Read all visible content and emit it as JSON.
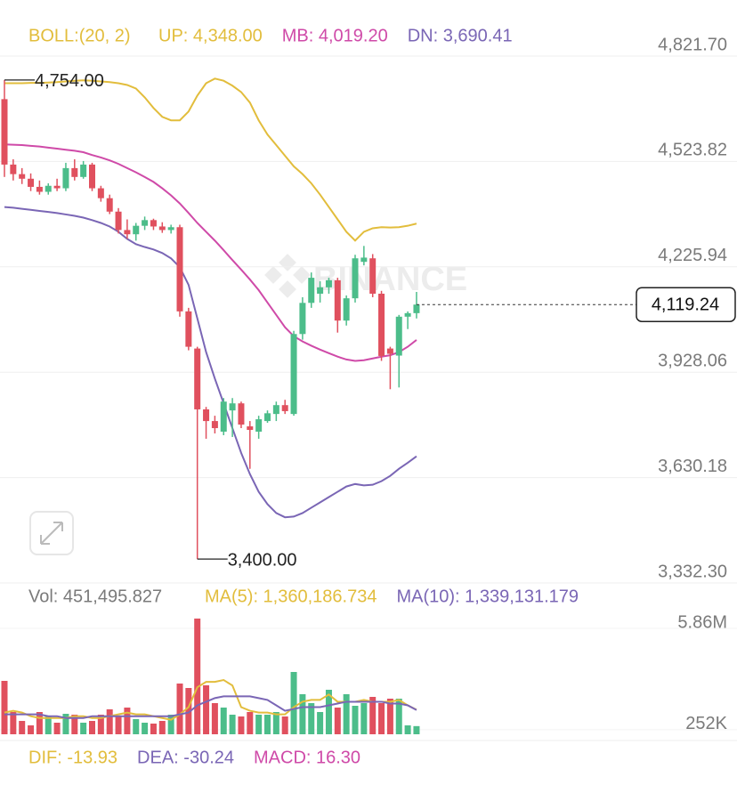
{
  "chart_data": {
    "type": "candlestick",
    "indicator": "BOLL:(20, 2)",
    "watermark": "BINANCE",
    "ylim": [
      3332.3,
      4821.7
    ],
    "yticks": [
      {
        "value": 4821.7,
        "label": "4,821.70"
      },
      {
        "value": 4523.82,
        "label": "4,523.82"
      },
      {
        "value": 4225.94,
        "label": "4,225.94"
      },
      {
        "value": 3928.06,
        "label": "3,928.06"
      },
      {
        "value": 3630.18,
        "label": "3,630.18"
      },
      {
        "value": 3332.3,
        "label": "3,332.30"
      }
    ],
    "grid": true,
    "up_color": "#4cbd8a",
    "down_color": "#e0505e",
    "open": [
      4700,
      4515,
      4488,
      4475,
      4452,
      4438,
      4455,
      4448,
      4505,
      4480,
      4515,
      4448,
      4420,
      4382,
      4330,
      4318,
      4342,
      4358,
      4340,
      4330,
      4338,
      4100,
      3995,
      3823,
      3790,
      3760,
      3820,
      3840,
      3775,
      3760,
      3790,
      3810,
      3835,
      3810,
      4036,
      4124,
      4150,
      4168,
      4188,
      4074,
      4137,
      4240,
      4250,
      4150,
      3995,
      3975,
      4085,
      4095
    ],
    "high": [
      4754,
      4530,
      4505,
      4490,
      4470,
      4462,
      4475,
      4520,
      4530,
      4525,
      4520,
      4455,
      4430,
      4392,
      4360,
      4350,
      4368,
      4362,
      4352,
      4345,
      4345,
      4110,
      4000,
      3830,
      3805,
      3855,
      3855,
      3845,
      3790,
      3805,
      3820,
      3845,
      3850,
      4045,
      4140,
      4210,
      4185,
      4195,
      4195,
      4145,
      4260,
      4285,
      4262,
      4158,
      4000,
      4090,
      4100,
      4155
    ],
    "low": [
      4480,
      4470,
      4460,
      4440,
      4430,
      4430,
      4440,
      4440,
      4470,
      4475,
      4440,
      4410,
      4375,
      4320,
      4305,
      4300,
      4330,
      4330,
      4322,
      4320,
      4085,
      3990,
      3400,
      3740,
      3755,
      3750,
      3745,
      3770,
      3655,
      3740,
      3785,
      3790,
      3810,
      3805,
      4020,
      4110,
      4125,
      4150,
      4040,
      4060,
      4125,
      4230,
      4140,
      3960,
      3880,
      3885,
      4050,
      4080
    ],
    "close": [
      4515,
      4488,
      4475,
      4452,
      4438,
      4455,
      4448,
      4505,
      4480,
      4515,
      4448,
      4420,
      4382,
      4330,
      4318,
      4342,
      4358,
      4340,
      4330,
      4338,
      4100,
      4000,
      3823,
      3790,
      3770,
      3845,
      3840,
      3780,
      3765,
      3795,
      3812,
      3835,
      3818,
      4036,
      4124,
      4195,
      4168,
      4188,
      4074,
      4137,
      4250,
      4252,
      4150,
      3974,
      3980,
      4085,
      4095,
      4119.24
    ],
    "series": [
      {
        "name": "UP: 4,348.00",
        "color": "#e2bd3c",
        "values": [
          4745,
          4745,
          4745,
          4746,
          4746,
          4747,
          4748,
          4750,
          4752,
          4753,
          4752,
          4750,
          4748,
          4745,
          4740,
          4730,
          4705,
          4675,
          4650,
          4640,
          4640,
          4665,
          4710,
          4745,
          4758,
          4752,
          4738,
          4720,
          4690,
          4640,
          4600,
          4570,
          4540,
          4510,
          4488,
          4462,
          4430,
          4395,
          4360,
          4325,
          4300,
          4325,
          4335,
          4338,
          4337,
          4338,
          4342,
          4348
        ]
      },
      {
        "name": "MB: 4,019.20",
        "color": "#cf4aa8",
        "values": [
          4572,
          4571,
          4570,
          4568,
          4566,
          4563,
          4560,
          4557,
          4554,
          4550,
          4542,
          4535,
          4527,
          4517,
          4505,
          4493,
          4480,
          4466,
          4448,
          4428,
          4405,
          4378,
          4350,
          4325,
          4300,
          4273,
          4245,
          4218,
          4190,
          4160,
          4125,
          4090,
          4055,
          4030,
          4015,
          4003,
          3992,
          3982,
          3972,
          3964,
          3960,
          3962,
          3967,
          3972,
          3976,
          3985,
          4000,
          4019.2
        ]
      },
      {
        "name": "DN: 3,690.41",
        "color": "#7a66b5",
        "values": [
          4395,
          4393,
          4390,
          4387,
          4384,
          4381,
          4378,
          4374,
          4370,
          4365,
          4358,
          4350,
          4340,
          4325,
          4305,
          4290,
          4282,
          4275,
          4265,
          4250,
          4225,
          4175,
          4080,
          3985,
          3910,
          3840,
          3770,
          3700,
          3640,
          3590,
          3555,
          3530,
          3518,
          3520,
          3530,
          3545,
          3560,
          3575,
          3590,
          3605,
          3612,
          3608,
          3610,
          3620,
          3635,
          3655,
          3672,
          3690.41
        ]
      }
    ],
    "annotations": [
      {
        "value": 4754,
        "label": "4,754.00"
      },
      {
        "value": 3400,
        "label": "3,400.00"
      }
    ],
    "last_price": {
      "value": 4119.24,
      "label": "4,119.24"
    },
    "volume": {
      "title": "Vol: 451,495.827",
      "ylim": [
        0,
        6400000
      ],
      "yticks": [
        {
          "value": 5860000,
          "label": "5.86M"
        },
        {
          "value": 252000,
          "label": "252K"
        }
      ],
      "values": [
        2953800,
        1230750,
        738450,
        492300,
        1230750,
        984600,
        639990,
        1132290,
        1083060,
        639990,
        738450,
        1083060,
        1378440,
        984600,
        1476900,
        836910,
        639990,
        590760,
        738450,
        1083060,
        2806110,
        2559960,
        6399900,
        2707650,
        1723050,
        1476900,
        1083060,
        984600,
        1230750,
        1083060,
        1083060,
        1230750,
        984600,
        3446100,
        2215350,
        1723050,
        1230750,
        2461500,
        1476900,
        2215350,
        1575360,
        1723050,
        2067660,
        1723050,
        1969200,
        1969200,
        492300,
        451495.827
      ],
      "series": [
        {
          "name": "MA(5): 1,360,186.734",
          "color": "#e2bd3c",
          "values": [
            1200000,
            1300000,
            1200000,
            1000000,
            900000,
            900000,
            900000,
            900000,
            1000000,
            1000000,
            900000,
            900000,
            1000000,
            1100000,
            1200000,
            1100000,
            1100000,
            1000000,
            900000,
            800000,
            1100000,
            1500000,
            2600000,
            2900000,
            2900000,
            3000000,
            2700000,
            1500000,
            1300000,
            1200000,
            1200000,
            1100000,
            1100000,
            1500000,
            1800000,
            1900000,
            1900000,
            2200000,
            1800000,
            1800000,
            1800000,
            1900000,
            1800000,
            1800000,
            1800000,
            1900000,
            1600000,
            1360186.734
          ]
        },
        {
          "name": "MA(10): 1,339,131.179",
          "color": "#7a66b5",
          "values": [
            1100000,
            1100000,
            1100000,
            1100000,
            1100000,
            1000000,
            1000000,
            900000,
            900000,
            900000,
            1000000,
            1000000,
            1000000,
            1000000,
            1000000,
            1000000,
            1000000,
            1000000,
            1000000,
            1000000,
            1100000,
            1200000,
            1600000,
            1800000,
            2000000,
            2100000,
            2100000,
            2100000,
            2100000,
            2000000,
            1900000,
            1600000,
            1300000,
            1400000,
            1500000,
            1500000,
            1500000,
            1600000,
            1700000,
            1800000,
            1800000,
            1800000,
            1800000,
            1800000,
            1700000,
            1700000,
            1600000,
            1339131.179
          ]
        }
      ]
    },
    "macd_legend": [
      {
        "name": "DIF: -13.93",
        "color": "#e2bd3c"
      },
      {
        "name": "DEA: -30.24",
        "color": "#7a66b5"
      },
      {
        "name": "MACD: 16.30",
        "color": "#cf4aa8"
      }
    ]
  }
}
